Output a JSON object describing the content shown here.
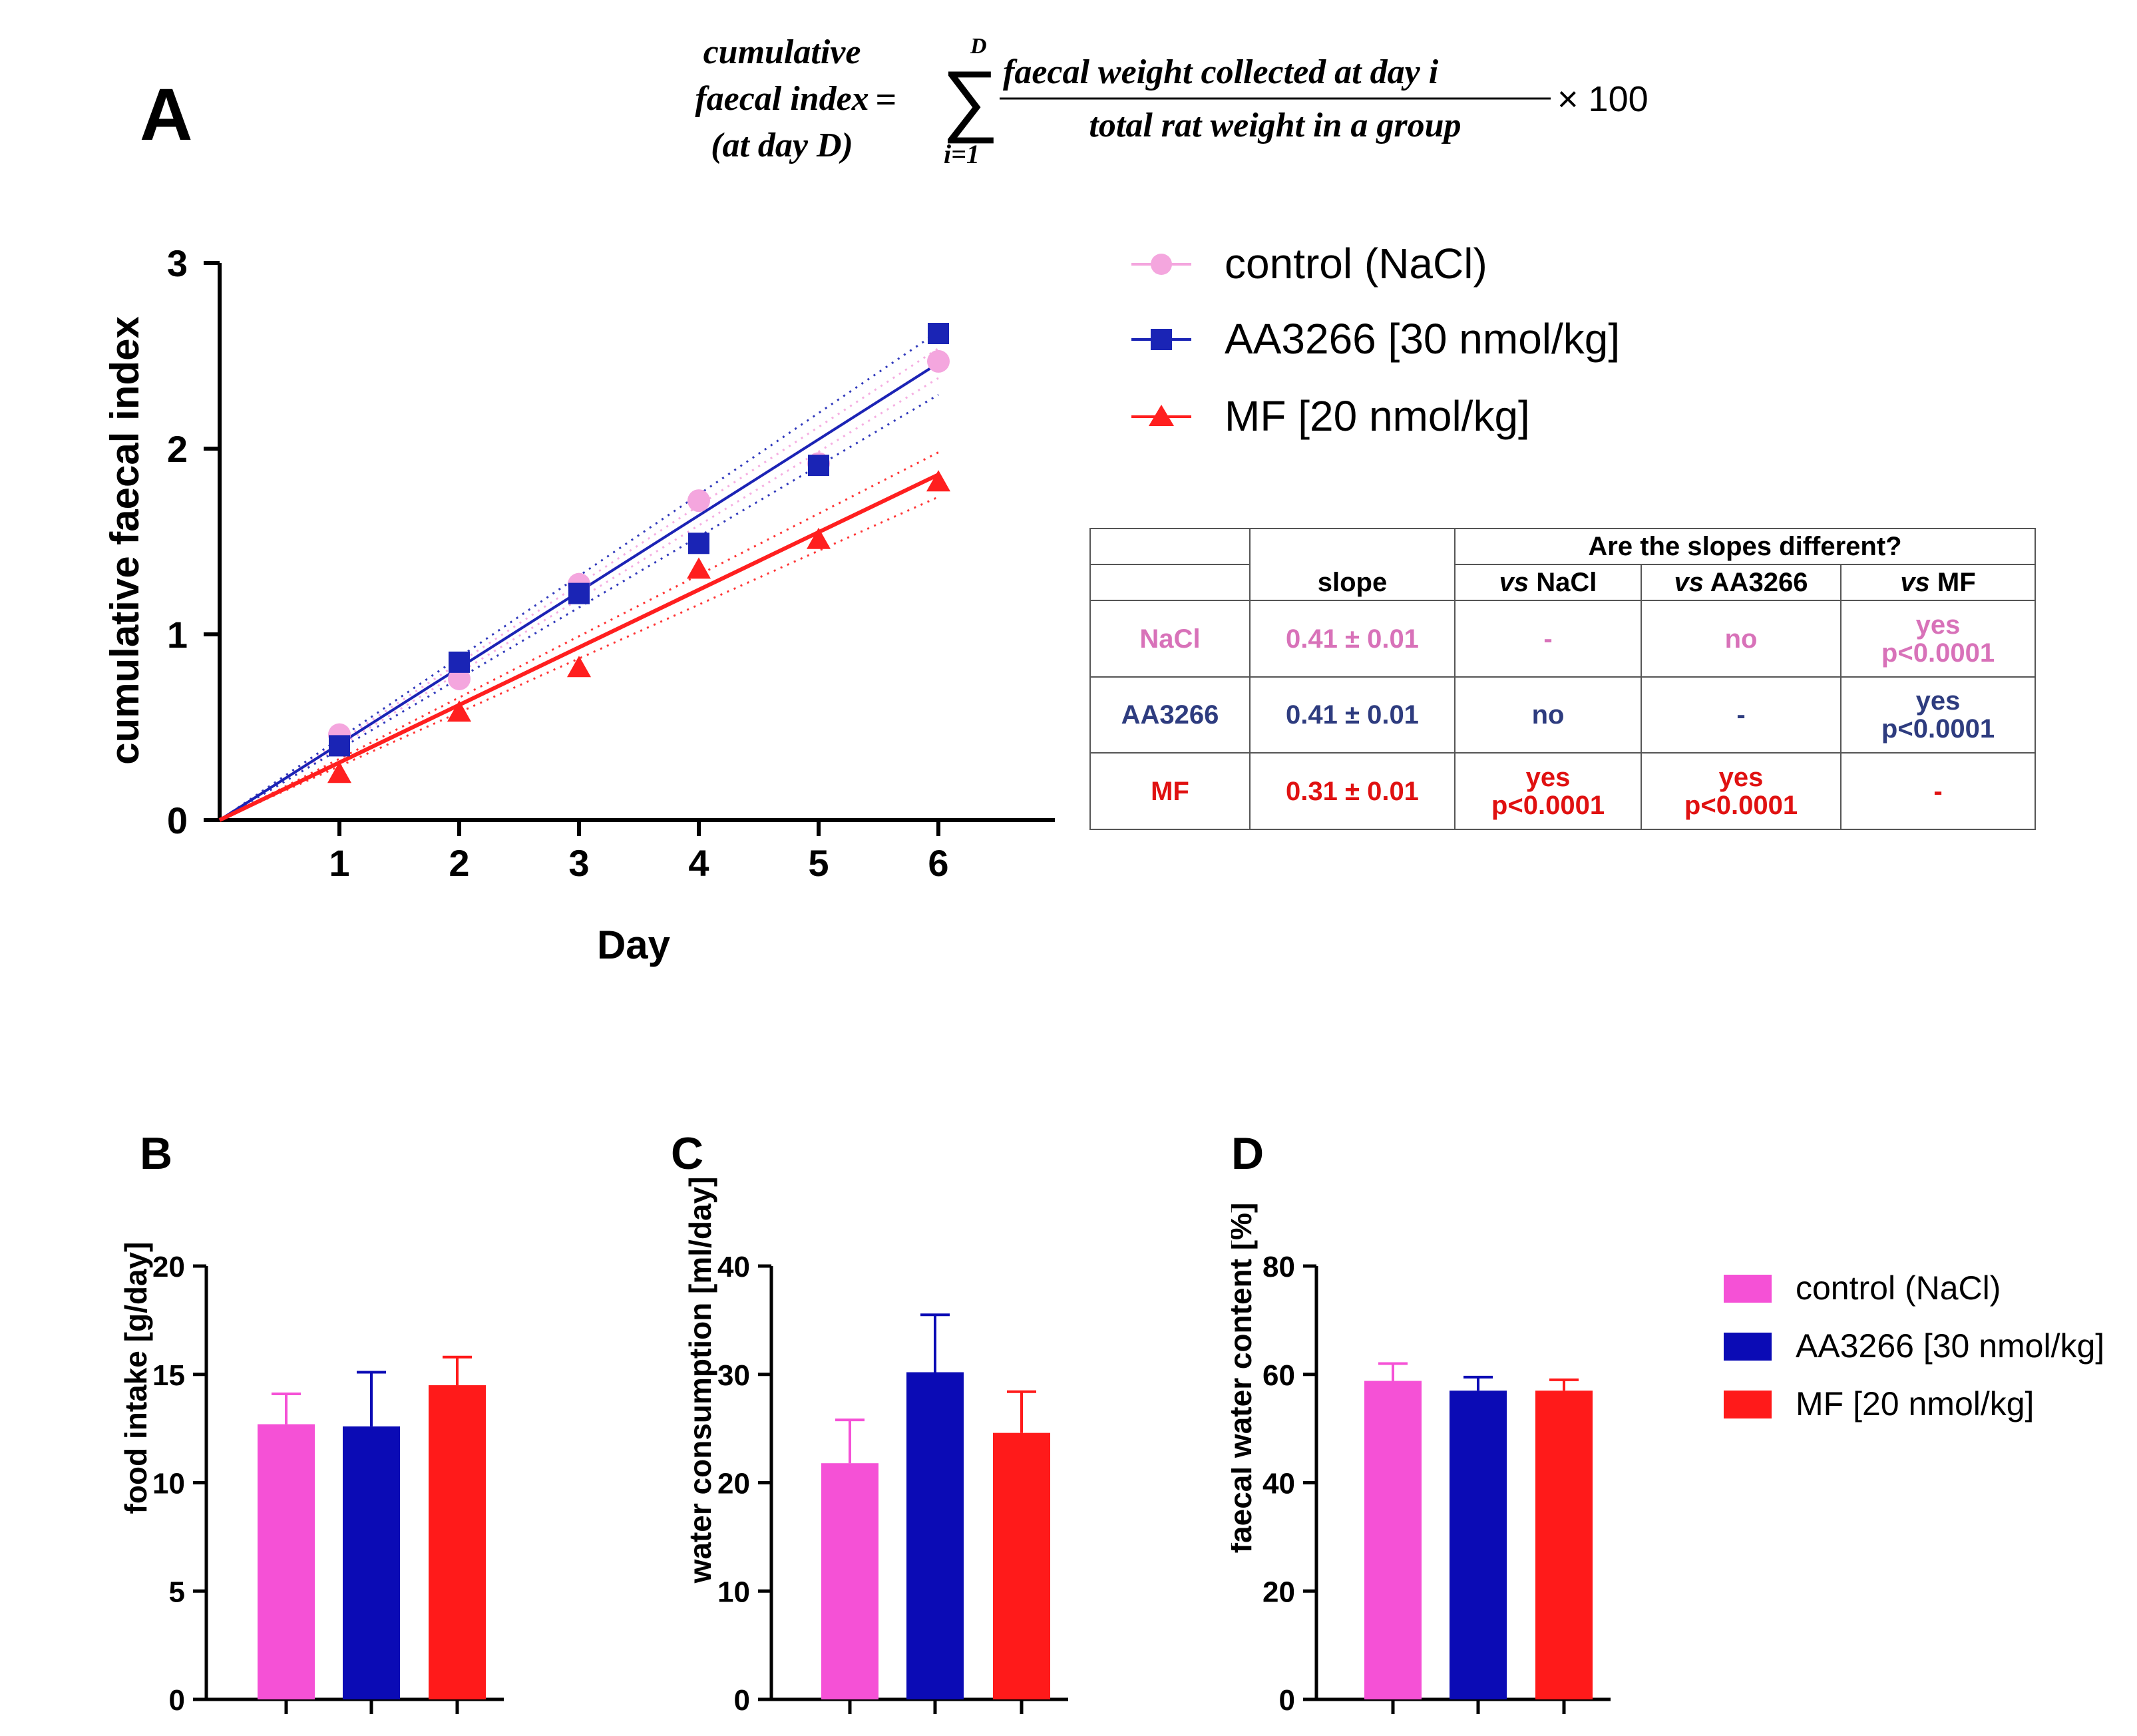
{
  "formula": {
    "lhs_line1": "cumulative",
    "lhs_line2": "faecal index",
    "lhs_line3": "(at day D)",
    "equals": "=",
    "sum_symbol": "∑",
    "sum_upper": "D",
    "sum_lower": "i=1",
    "numerator": "faecal weight collected at day i",
    "denominator": "total rat weight in a group",
    "multiplier": "× 100"
  },
  "panel_labels": {
    "A": "A",
    "B": "B",
    "C": "C",
    "D": "D"
  },
  "colors": {
    "control": "#f4a6de",
    "aa3266": "#1a24b5",
    "mf": "#ff1f1f",
    "control_bar": "#f551d6",
    "aa3266_bar": "#0b0bb5",
    "mf_bar": "#ff1a1a",
    "table_nacl": "#d872b9",
    "table_aa": "#2e3c7f",
    "table_mf": "#e01111"
  },
  "chart_data": [
    {
      "id": "A",
      "type": "scatter",
      "title": "",
      "xlabel": "Day",
      "ylabel": "cumulative faecal index",
      "xlim": [
        0,
        7
      ],
      "ylim": [
        0,
        3
      ],
      "xticks": [
        1,
        2,
        3,
        4,
        5,
        6
      ],
      "yticks": [
        0,
        1,
        2,
        3
      ],
      "legend_position": "right",
      "series": [
        {
          "name": "control (NaCl)",
          "marker": "circle",
          "color": "#f4a6de",
          "x": [
            1,
            2,
            3,
            4,
            5,
            6
          ],
          "y": [
            0.46,
            0.76,
            1.27,
            1.72,
            1.92,
            2.47
          ],
          "fit_slope": 0.41,
          "ci_spread": 0.08
        },
        {
          "name": "AA3266 [30 nmol/kg]",
          "marker": "square",
          "color": "#1a24b5",
          "x": [
            1,
            2,
            3,
            4,
            5,
            6
          ],
          "y": [
            0.4,
            0.85,
            1.22,
            1.49,
            1.91,
            2.62
          ],
          "fit_slope": 0.41,
          "ci_spread": 0.17
        },
        {
          "name": "MF [20 nmol/kg]",
          "marker": "triangle",
          "color": "#ff1f1f",
          "x": [
            1,
            2,
            3,
            4,
            5,
            6
          ],
          "y": [
            0.25,
            0.58,
            0.82,
            1.35,
            1.51,
            1.82
          ],
          "fit_slope": 0.31,
          "ci_spread": 0.12
        }
      ]
    },
    {
      "id": "B",
      "type": "bar",
      "ylabel": "food intake [g/day]",
      "ylim": [
        0,
        20
      ],
      "yticks": [
        0,
        5,
        10,
        15,
        20
      ],
      "categories": [
        "control (NaCl)",
        "AA3266 [30 nmol/kg]",
        "MF [20 nmol/kg]"
      ],
      "values": [
        12.7,
        12.6,
        14.5
      ],
      "errors": [
        1.4,
        2.5,
        1.3
      ]
    },
    {
      "id": "C",
      "type": "bar",
      "ylabel": "water consumption [ml/day]",
      "ylim": [
        0,
        40
      ],
      "yticks": [
        0,
        10,
        20,
        30,
        40
      ],
      "categories": [
        "control (NaCl)",
        "AA3266 [30 nmol/kg]",
        "MF [20 nmol/kg]"
      ],
      "values": [
        21.8,
        30.2,
        24.6
      ],
      "errors": [
        4.0,
        5.3,
        3.8
      ]
    },
    {
      "id": "D",
      "type": "bar",
      "ylabel": "faecal water content [%]",
      "ylim": [
        0,
        80
      ],
      "yticks": [
        0,
        20,
        40,
        60,
        80
      ],
      "categories": [
        "control (NaCl)",
        "AA3266 [30 nmol/kg]",
        "MF [20 nmol/kg]"
      ],
      "values": [
        58.8,
        57.0,
        57.0
      ],
      "errors": [
        3.2,
        2.5,
        2.0
      ]
    }
  ],
  "bar_legend": [
    "control (NaCl)",
    "AA3266 [30 nmol/kg]",
    "MF [20 nmol/kg]"
  ],
  "table": {
    "title": "Are the slopes different?",
    "headers": {
      "slope": "slope",
      "vs_nacl_pre": "vs",
      "vs_nacl": " NaCl",
      "vs_aa_pre": "vs",
      "vs_aa": " AA3266",
      "vs_mf_pre": "vs",
      "vs_mf": " MF"
    },
    "rows": [
      {
        "name": "NaCl",
        "slope": "0.41 ± 0.01",
        "vs_nacl": "-",
        "vs_aa": "no",
        "vs_mf_1": "yes",
        "vs_mf_2": "p<0.0001"
      },
      {
        "name": "AA3266",
        "slope": "0.41 ± 0.01",
        "vs_nacl": "no",
        "vs_aa": "-",
        "vs_mf_1": "yes",
        "vs_mf_2": "p<0.0001"
      },
      {
        "name": "MF",
        "slope": "0.31 ± 0.01",
        "vs_nacl_1": "yes",
        "vs_nacl_2": "p<0.0001",
        "vs_aa_1": "yes",
        "vs_aa_2": "p<0.0001",
        "vs_mf": "-"
      }
    ]
  }
}
